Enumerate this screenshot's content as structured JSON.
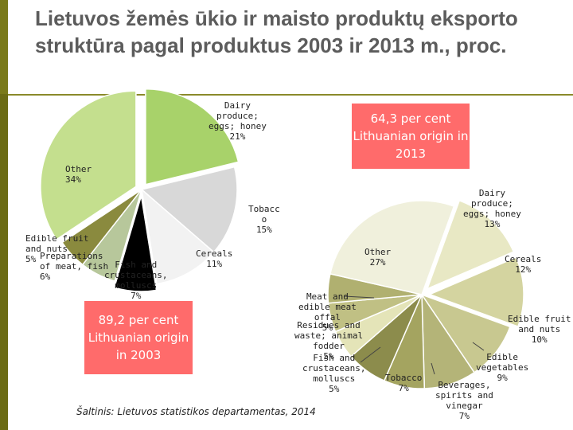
{
  "title": "Lietuvos žemės ūkio ir maisto produktų eksporto struktūra pagal produktus 2003 ir 2013 m., proc.",
  "callout_2013": "64,3 per cent Lithuanian origin in 2013",
  "callout_2003": "89,2 per cent Lithuanian origin in 2003",
  "source": "Šaltinis: Lietuvos statistikos departamentas, 2014",
  "colors": {
    "sidebar": "#6b6b14",
    "callout": "#ff6b6b"
  },
  "chart_data": [
    {
      "type": "pie",
      "year": "2003",
      "slices": [
        {
          "name": "Dairy produce; eggs; honey",
          "value": 21,
          "label": "Dairy\nproduce;\neggs; honey\n21%",
          "color": "#a8d26a"
        },
        {
          "name": "Tobacco",
          "value": 15,
          "label": "Tobacc\no\n15%",
          "color": "#d8d8d8"
        },
        {
          "name": "Cereals",
          "value": 11,
          "label": "Cereals\n11%",
          "color": "#f2f2f2"
        },
        {
          "name": "Fish and crustaceans, molluscs",
          "value": 7,
          "label": "Fish and\ncrustaceans,\nmolluscs\n7%",
          "color": "#000000"
        },
        {
          "name": "Preparations of meat, fish",
          "value": 6,
          "label": "Preparations\nof meat, fish\n6%",
          "color": "#b7c79b"
        },
        {
          "name": "Edible fruit and nuts",
          "value": 5,
          "label": "Edible fruit\nand nuts\n5%",
          "color": "#8a8a3e"
        },
        {
          "name": "Other",
          "value": 34,
          "label": "Other\n34%",
          "color": "#c4df8e"
        }
      ]
    },
    {
      "type": "pie",
      "year": "2013",
      "slices": [
        {
          "name": "Dairy produce; eggs; honey",
          "value": 13,
          "label": "Dairy\nproduce;\neggs; honey\n13%"
        },
        {
          "name": "Cereals",
          "value": 12,
          "label": "Cereals\n12%"
        },
        {
          "name": "Edible fruit and nuts",
          "value": 10,
          "label": "Edible fruit\nand nuts\n10%"
        },
        {
          "name": "Edible vegetables",
          "value": 9,
          "label": "Edible\nvegetables\n9%"
        },
        {
          "name": "Beverages, spirits and vinegar",
          "value": 7,
          "label": "Beverages,\nspirits and\nvinegar\n7%"
        },
        {
          "name": "Tobacco",
          "value": 7,
          "label": "Tobacco\n7%"
        },
        {
          "name": "Fish and crustaceans, molluscs",
          "value": 5,
          "label": "Fish and\ncrustaceans,\nmolluscs\n5%"
        },
        {
          "name": "Residues and waste; animal fodder",
          "value": 5,
          "label": "Residues and\nwaste; animal\nfodder\n5%"
        },
        {
          "name": "Meat and edible meat offal",
          "value": 5,
          "label": "Meat and\nedible meat\noffal\n5%"
        },
        {
          "name": "Other",
          "value": 27,
          "label": "Other\n27%"
        }
      ],
      "colors": [
        "#e8e8c4",
        "#d4d4a0",
        "#c8c890",
        "#b4b478",
        "#a4a460",
        "#8c8c4c",
        "#e4e4b8",
        "#c0c084",
        "#b0b070",
        "#f0f0dc"
      ]
    }
  ]
}
